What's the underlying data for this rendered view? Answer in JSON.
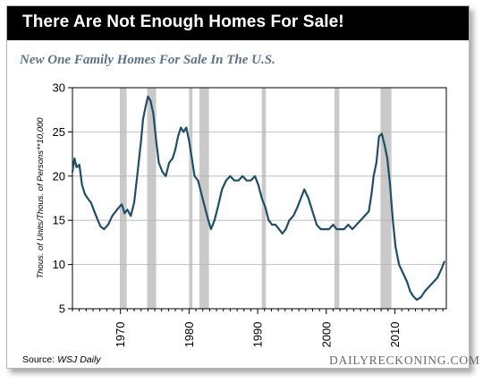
{
  "banner": {
    "title": "There Are Not Enough Homes For Sale!"
  },
  "subtitle": "New One Family Homes For Sale In The U.S.",
  "footer": {
    "source_label": "Source: ",
    "source_name": "WSJ Daily",
    "brand": "DAILYRECKONING.COM"
  },
  "colors": {
    "line": "#1f4e66",
    "recession": "#c9c9c9",
    "banner": "#000000",
    "subtitle": "#5b7385"
  },
  "chart_data": {
    "type": "line",
    "ylabel": "Thous. of Units/Thous. of Persons**10,000",
    "xlabel": "",
    "xlim": [
      1963,
      2017.5
    ],
    "ylim": [
      5,
      30
    ],
    "yticks": [
      5,
      10,
      15,
      20,
      25,
      30
    ],
    "xticks": [
      1970,
      1980,
      1990,
      2000,
      2010
    ],
    "grid": "horizontal",
    "recessions": [
      [
        1969.9,
        1970.9
      ],
      [
        1973.9,
        1975.2
      ],
      [
        1980.0,
        1980.5
      ],
      [
        1981.5,
        1982.9
      ],
      [
        1990.6,
        1991.2
      ],
      [
        2001.2,
        2001.9
      ],
      [
        2007.9,
        2009.5
      ]
    ],
    "series": [
      {
        "name": "",
        "x": [
          1963,
          1963.3,
          1963.6,
          1964,
          1964.4,
          1964.8,
          1965.2,
          1965.7,
          1966.2,
          1966.7,
          1967.1,
          1967.6,
          1968.2,
          1968.8,
          1969.3,
          1969.8,
          1970.2,
          1970.6,
          1971,
          1971.5,
          1972,
          1972.5,
          1973,
          1973.3,
          1973.7,
          1974,
          1974.4,
          1974.8,
          1975.2,
          1975.6,
          1976.1,
          1976.6,
          1977.1,
          1977.6,
          1978,
          1978.4,
          1978.8,
          1979.2,
          1979.6,
          1980,
          1980.4,
          1980.8,
          1981.3,
          1981.8,
          1982.3,
          1982.8,
          1983.2,
          1983.7,
          1984.2,
          1984.8,
          1985.4,
          1986,
          1986.6,
          1987.2,
          1987.8,
          1988.4,
          1989,
          1989.6,
          1990.1,
          1990.6,
          1991.1,
          1991.6,
          1992.1,
          1992.6,
          1993.1,
          1993.6,
          1994.1,
          1994.6,
          1995.2,
          1995.8,
          1996.3,
          1996.8,
          1997.4,
          1998,
          1998.6,
          1999.2,
          1999.8,
          2000.4,
          2001,
          2001.5,
          2002,
          2002.6,
          2003.2,
          2003.8,
          2004.4,
          2005,
          2005.6,
          2006.2,
          2006.6,
          2006.9,
          2007.3,
          2007.7,
          2008.1,
          2008.5,
          2008.9,
          2009.3,
          2009.7,
          2010.1,
          2010.6,
          2011.2,
          2011.8,
          2012.2,
          2012.6,
          2013.2,
          2013.8,
          2014.4,
          2015,
          2015.6,
          2016.2,
          2016.8,
          2017.2
        ],
        "y": [
          20.5,
          22,
          21,
          21.3,
          19,
          18,
          17.5,
          17,
          16,
          15,
          14.3,
          14,
          14.5,
          15.5,
          16,
          16.5,
          16.8,
          15.8,
          16.2,
          15.5,
          17,
          20.5,
          24,
          26.5,
          28,
          29,
          28.5,
          27,
          24,
          21.5,
          20.5,
          20,
          21.5,
          22,
          23,
          24.5,
          25.5,
          25,
          25.5,
          24,
          22,
          20,
          19.5,
          18,
          16.5,
          15,
          14,
          15,
          16.5,
          18.5,
          19.5,
          20,
          19.5,
          19.5,
          20,
          19.5,
          19.5,
          20,
          19,
          17.5,
          16.5,
          15,
          14.5,
          14.5,
          14,
          13.5,
          14,
          15,
          15.5,
          16.5,
          17.5,
          18.5,
          17.5,
          16,
          14.5,
          14,
          14,
          14,
          14.5,
          14,
          14,
          14,
          14.5,
          14,
          14.5,
          15,
          15.5,
          16,
          18,
          20,
          21.5,
          24.5,
          24.8,
          23.5,
          22,
          19,
          15,
          12,
          10,
          9,
          8,
          7,
          6.5,
          6,
          6.3,
          7,
          7.5,
          8,
          8.5,
          9.5,
          10.3
        ]
      }
    ]
  }
}
